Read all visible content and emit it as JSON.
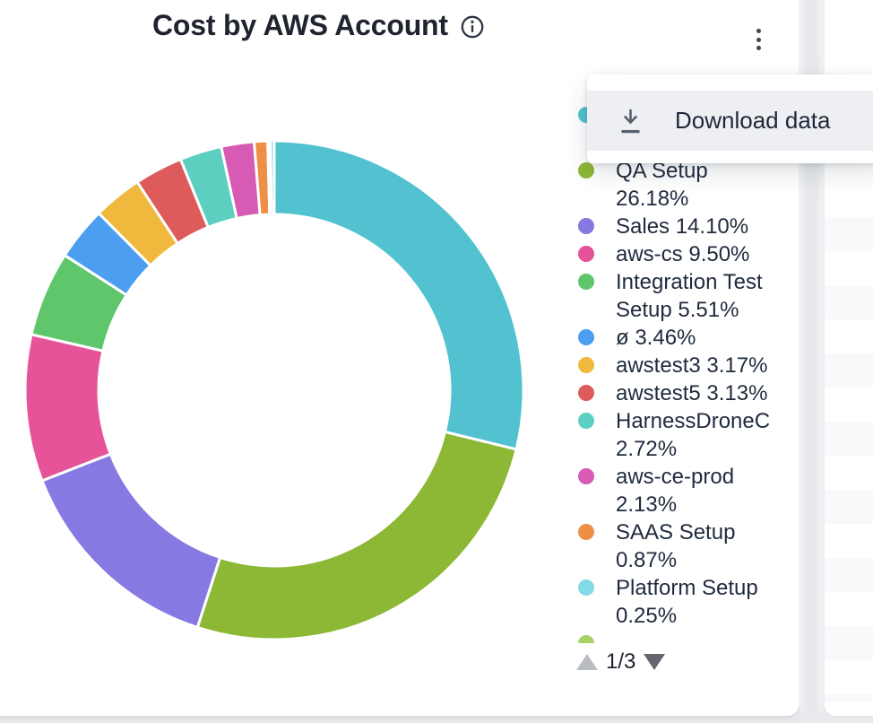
{
  "widget": {
    "title": "Cost by AWS Account",
    "info_icon": "info-circle",
    "kebab_menu_icon": "vertical-ellipsis"
  },
  "menu": {
    "items": [
      {
        "label": "Download data",
        "icon": "download-icon"
      }
    ]
  },
  "chart_data": {
    "type": "pie",
    "donut": true,
    "title": "Cost by AWS Account",
    "legend_position": "right",
    "start_angle_deg": 0,
    "slices": [
      {
        "label": "",
        "value": 28.81,
        "color": "#52c2d0"
      },
      {
        "label": "QA Setup",
        "value": 26.18,
        "color": "#8cb836"
      },
      {
        "label": "Sales",
        "value": 14.1,
        "color": "#8679e1"
      },
      {
        "label": "aws-cs",
        "value": 9.5,
        "color": "#e75399"
      },
      {
        "label": "Integration Test Setup",
        "value": 5.51,
        "color": "#5fc66c"
      },
      {
        "label": "ø",
        "value": 3.46,
        "color": "#4c9ff0"
      },
      {
        "label": "awstest3",
        "value": 3.17,
        "color": "#f0b83c"
      },
      {
        "label": "awstest5",
        "value": 3.13,
        "color": "#dd5b5b"
      },
      {
        "label": "HarnessDroneCI",
        "value": 2.72,
        "color": "#5ccfc0"
      },
      {
        "label": "aws-ce-prod",
        "value": 2.13,
        "color": "#d75ab4"
      },
      {
        "label": "SAAS Setup",
        "value": 0.87,
        "color": "#ee8f48"
      },
      {
        "label": "",
        "value": 0.07,
        "color": "#bfe7ed"
      },
      {
        "label": "",
        "value": 0.1,
        "color": "#a9d065"
      },
      {
        "label": "Platform Setup",
        "value": 0.25,
        "color": "#83dae6"
      }
    ]
  },
  "legend": {
    "items": [
      {
        "color": "#52c2d0",
        "lines": [
          "",
          ""
        ]
      },
      {
        "color": "#8cb836",
        "lines": [
          "QA Setup",
          "26.18%"
        ]
      },
      {
        "color": "#8679e1",
        "lines": [
          "Sales 14.10%"
        ]
      },
      {
        "color": "#e75399",
        "lines": [
          "aws-cs 9.50%"
        ]
      },
      {
        "color": "#5fc66c",
        "lines": [
          "Integration Test",
          "Setup 5.51%"
        ]
      },
      {
        "color": "#4c9ff0",
        "lines": [
          "ø 3.46%"
        ]
      },
      {
        "color": "#f0b83c",
        "lines": [
          "awstest3 3.17%"
        ]
      },
      {
        "color": "#dd5b5b",
        "lines": [
          "awstest5 3.13%"
        ]
      },
      {
        "color": "#5ccfc0",
        "lines": [
          "HarnessDroneCI",
          "2.72%"
        ]
      },
      {
        "color": "#d75ab4",
        "lines": [
          "aws-ce-prod",
          "2.13%"
        ]
      },
      {
        "color": "#ee8f48",
        "lines": [
          "SAAS Setup",
          "0.87%"
        ]
      },
      {
        "color": "#83dae6",
        "lines": [
          "Platform Setup",
          "0.25%"
        ]
      },
      {
        "color": "#a9d065",
        "lines": [
          "",
          ""
        ]
      }
    ],
    "pagination": {
      "label": "1/3",
      "prev_icon": "triangle-up",
      "next_icon": "triangle-down"
    }
  },
  "colors": {
    "page_bg": "#e9eaed",
    "card_bg": "#ffffff",
    "menu_hover_bg": "#edeff2",
    "text": "#1f2a3d",
    "title_text": "#20242f",
    "icon_slate": "#57606d",
    "pager_disabled": "#b9bdc2",
    "pager_enabled": "#63676d",
    "slice_gap_stroke": "#ffffff"
  },
  "geometry": {
    "donut_outer_radius": 278,
    "donut_inner_radius": 196
  }
}
